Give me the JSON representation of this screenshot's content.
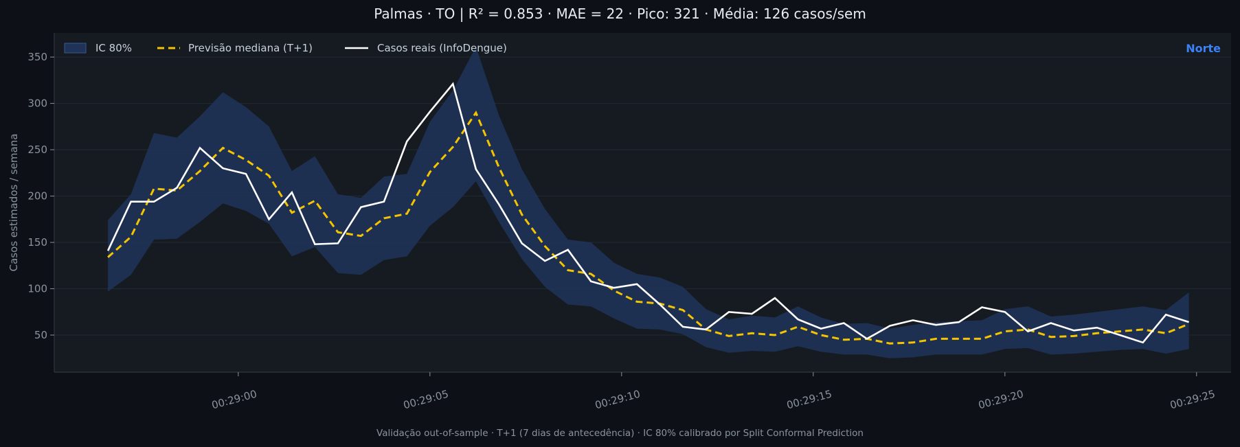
{
  "chart_data": {
    "type": "line",
    "title": "Palmas · TO   |   R² = 0.853  ·  MAE = 22  ·  Pico: 321  ·  Média: 126 casos/sem",
    "region_label": "Norte",
    "ylabel": "Casos estimados / semana",
    "xlabel": "",
    "footer": "Validação out-of-sample · T+1 (7 dias de antecedência) · IC 80% calibrado por Split Conformal Prediction",
    "ylim": [
      10,
      376
    ],
    "xlim": [
      -4.8,
      25.9
    ],
    "y_ticks": [
      50,
      100,
      150,
      200,
      250,
      300,
      350
    ],
    "x_ticks": [
      {
        "value": 0,
        "label": "00:29:00"
      },
      {
        "value": 5,
        "label": "00:29:05"
      },
      {
        "value": 10,
        "label": "00:29:10"
      },
      {
        "value": 15,
        "label": "00:29:15"
      },
      {
        "value": 20,
        "label": "00:29:20"
      },
      {
        "value": 25,
        "label": "00:29:25"
      }
    ],
    "x_unit": "seconds after 00:29:00",
    "legend": {
      "placement": "top-left",
      "entries": [
        "IC 80%",
        "Previsão mediana (T+1)",
        "Casos reais (InfoDengue)"
      ]
    },
    "grid": true,
    "colors": {
      "background": "#0d1117",
      "plot_bg": "#161b22",
      "band": "#1f3358",
      "median": "#f5c400",
      "actual": "#ffffff",
      "region": "#3b82f6"
    },
    "x": [
      -3.4,
      -2.8,
      -2.2,
      -1.6,
      -1.0,
      -0.4,
      0.2,
      0.8,
      1.4,
      2.0,
      2.6,
      3.2,
      3.8,
      4.4,
      5.0,
      5.6,
      6.2,
      6.8,
      7.4,
      8.0,
      8.6,
      9.2,
      9.8,
      10.4,
      11.0,
      11.6,
      12.2,
      12.8,
      13.4,
      14.0,
      14.6,
      15.2,
      15.8,
      16.4,
      17.0,
      17.6,
      18.2,
      18.8,
      19.4,
      20.0,
      20.6,
      21.2,
      21.8,
      22.4,
      23.0,
      23.6,
      24.2,
      24.8
    ],
    "series": [
      {
        "name": "IC 80%",
        "kind": "band",
        "lower": [
          97,
          115,
          153,
          154,
          172,
          192,
          184,
          170,
          135,
          145,
          117,
          115,
          131,
          135,
          168,
          188,
          216,
          172,
          132,
          102,
          83,
          81,
          68,
          57,
          56,
          51,
          37,
          31,
          33,
          32,
          38,
          32,
          29,
          29,
          25,
          26,
          29,
          29,
          29,
          35,
          36,
          29,
          30,
          32,
          34,
          35,
          30,
          35
        ],
        "upper": [
          174,
          202,
          268,
          263,
          286,
          312,
          296,
          275,
          227,
          243,
          202,
          198,
          221,
          224,
          280,
          314,
          361,
          287,
          229,
          186,
          153,
          150,
          128,
          116,
          112,
          102,
          78,
          67,
          71,
          69,
          81,
          69,
          62,
          63,
          57,
          61,
          64,
          65,
          66,
          78,
          81,
          70,
          72,
          75,
          78,
          81,
          77,
          96
        ]
      },
      {
        "name": "Previsão mediana (T+1)",
        "kind": "line",
        "values": [
          134,
          156,
          208,
          206,
          227,
          252,
          239,
          222,
          182,
          195,
          161,
          157,
          176,
          181,
          226,
          253,
          290,
          231,
          180,
          146,
          120,
          116,
          98,
          86,
          84,
          77,
          56,
          49,
          52,
          50,
          59,
          50,
          45,
          46,
          41,
          42,
          46,
          46,
          46,
          54,
          56,
          48,
          49,
          52,
          54,
          56,
          52,
          62
        ]
      },
      {
        "name": "Casos reais (InfoDengue)",
        "kind": "line",
        "values": [
          141,
          194,
          194,
          209,
          252,
          230,
          224,
          175,
          204,
          148,
          149,
          188,
          194,
          259,
          291,
          321,
          229,
          191,
          149,
          130,
          142,
          108,
          101,
          105,
          83,
          59,
          56,
          75,
          73,
          90,
          67,
          57,
          63,
          46,
          60,
          66,
          61,
          64,
          80,
          75,
          54,
          63,
          55,
          58,
          50,
          42,
          72,
          64
        ]
      }
    ]
  }
}
